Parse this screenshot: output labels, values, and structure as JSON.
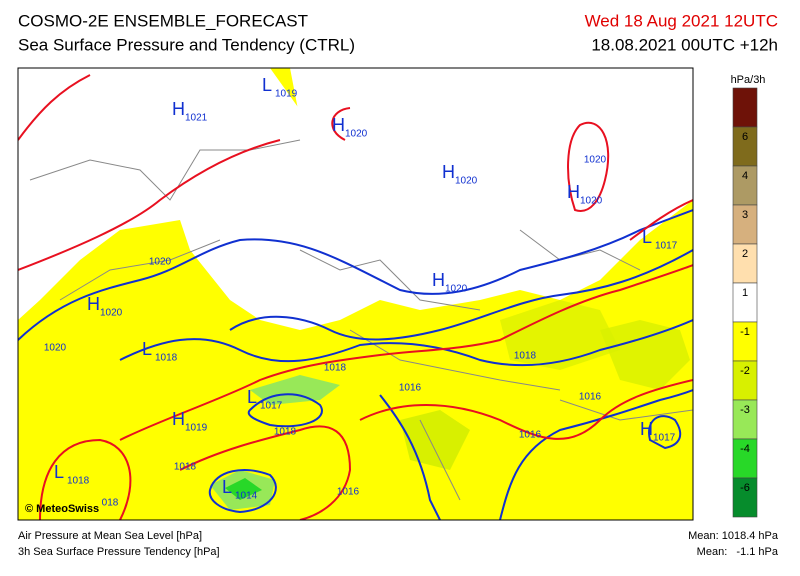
{
  "header": {
    "title": "COSMO-2E ENSEMBLE_FORECAST",
    "subtitle": "Sea Surface Pressure and Tendency (CTRL)",
    "valid_time": "Wed 18 Aug 2021 12UTC",
    "run_time": "18.08.2021 00UTC +12h"
  },
  "legend": {
    "unit": "hPa/3h",
    "labels": [
      "6",
      "4",
      "3",
      "2",
      "1",
      "-1",
      "-2",
      "-3",
      "-4",
      "-6"
    ],
    "colors": [
      "#6e1208",
      "#7f6b1c",
      "#ad9a64",
      "#d6b07e",
      "#ffdfae",
      "#ffffff",
      "#ffff00",
      "#d8f000",
      "#98e858",
      "#28d828",
      "#068c2c"
    ]
  },
  "map_labels": [
    {
      "symbol": "H",
      "value": "1021"
    },
    {
      "symbol": "L",
      "value": "1019"
    },
    {
      "symbol": "H",
      "value": "1020"
    },
    {
      "symbol": "H",
      "value": "1020"
    },
    {
      "value": "1020"
    },
    {
      "symbol": "H",
      "value": "1020"
    },
    {
      "symbol": "L",
      "value": "1017"
    },
    {
      "value": "1020"
    },
    {
      "symbol": "H",
      "value": "1020"
    },
    {
      "symbol": "H",
      "value": "1020"
    },
    {
      "value": "1020"
    },
    {
      "symbol": "L",
      "value": "1018"
    },
    {
      "value": "1018"
    },
    {
      "value": "1018"
    },
    {
      "symbol": "L",
      "value": "1017"
    },
    {
      "value": "1016"
    },
    {
      "value": "1016"
    },
    {
      "symbol": "H",
      "value": "1019"
    },
    {
      "value": "1018"
    },
    {
      "value": "1016"
    },
    {
      "symbol": "H",
      "value": "1017"
    },
    {
      "value": "1018"
    },
    {
      "symbol": "L",
      "value": "1018"
    },
    {
      "symbol": "L",
      "value": "1014"
    },
    {
      "value": "1016"
    },
    {
      "value": "018"
    }
  ],
  "footer": {
    "copyright": "© MeteoSwiss",
    "line1": "Air Pressure at Mean Sea Level [hPa]",
    "line2": "3h Sea Surface Pressure Tendency [hPa]",
    "mean_pressure": "Mean: 1018.4 hPa",
    "mean_tendency": "Mean:   -1.1 hPa"
  }
}
